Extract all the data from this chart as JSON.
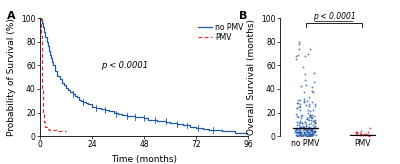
{
  "panel_A": {
    "xlabel": "Time (months)",
    "ylabel": "Probability of Survival (%)",
    "xlim": [
      0,
      96
    ],
    "ylim": [
      0,
      100
    ],
    "xticks": [
      0,
      24,
      48,
      72,
      96
    ],
    "yticks": [
      0,
      20,
      40,
      60,
      80,
      100
    ],
    "pvalue_text": "p < 0.0001",
    "pvalue_x": 28,
    "pvalue_y": 58,
    "legend_entries": [
      "no PMV",
      "PMV"
    ],
    "no_pmv_color": "#2158a6",
    "pmv_color": "#d93030",
    "no_pmv_curve_x": [
      0,
      0.5,
      1,
      1.5,
      2,
      2.5,
      3,
      3.5,
      4,
      4.5,
      5,
      5.5,
      6,
      7,
      8,
      9,
      10,
      11,
      12,
      13,
      14,
      15,
      16,
      17,
      18,
      19,
      20,
      21,
      22,
      24,
      26,
      28,
      30,
      32,
      34,
      36,
      38,
      40,
      42,
      44,
      46,
      48,
      50,
      52,
      54,
      56,
      58,
      60,
      63,
      66,
      69,
      72,
      75,
      78,
      84,
      90,
      96
    ],
    "no_pmv_curve_y": [
      100,
      99,
      96,
      92,
      88,
      84,
      80,
      76,
      72,
      69,
      66,
      63,
      60,
      55,
      51,
      48,
      45,
      43,
      41,
      39,
      37,
      36,
      34,
      33,
      31,
      30,
      29,
      28,
      27,
      25,
      24,
      23,
      22,
      21,
      20,
      19,
      18,
      17,
      17,
      16,
      16,
      15,
      14,
      14,
      13,
      13,
      12,
      11,
      10,
      9,
      8,
      7,
      6,
      5,
      4,
      3,
      2
    ],
    "pmv_curve_x": [
      0,
      0.5,
      1,
      1.5,
      2,
      2.5,
      3,
      4,
      5,
      6,
      7,
      8,
      10,
      12
    ],
    "pmv_curve_y": [
      100,
      85,
      40,
      20,
      12,
      8,
      6,
      5,
      5,
      5,
      5,
      4,
      4,
      4
    ],
    "censor_x": [
      15,
      20,
      26,
      30,
      35,
      40,
      44,
      48,
      53,
      58,
      63,
      68,
      73,
      80
    ],
    "censor_y": [
      36,
      29,
      24,
      22,
      19,
      17,
      16,
      15,
      14,
      13,
      10,
      9,
      7,
      5
    ]
  },
  "panel_B": {
    "ylabel": "Overall Survival (months)",
    "ylim": [
      0,
      100
    ],
    "yticks": [
      0,
      20,
      40,
      60,
      80,
      100
    ],
    "xtick_labels": [
      "no PMV",
      "PMV"
    ],
    "pvalue_text": "p < 0.0001",
    "no_pmv_color": "#2158a6",
    "pmv_color": "#d93030"
  },
  "background_color": "#ffffff",
  "font_size": 6.5
}
